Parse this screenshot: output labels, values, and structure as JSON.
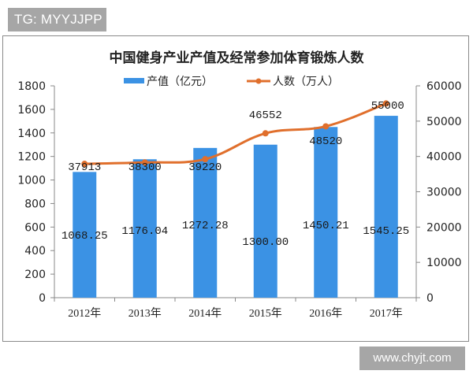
{
  "badges": {
    "tg": "TG: MYYJJPP",
    "site": "www.chyjt.com"
  },
  "colors": {
    "bar": "#3b92e4",
    "line": "#e06f2c",
    "axis": "#888888",
    "text": "#222222"
  },
  "chart_data": {
    "type": "bar+line",
    "title": "中国健身产业产值及经常参加体育锻炼人数",
    "categories": [
      "2012年",
      "2013年",
      "2014年",
      "2015年",
      "2016年",
      "2017年"
    ],
    "series": [
      {
        "name": "产值（亿元）",
        "type": "bar",
        "axis": "left",
        "values": [
          1068.25,
          1176.04,
          1272.28,
          1300.0,
          1450.21,
          1545.25
        ],
        "labels": [
          "1068.25",
          "1176.04",
          "1272.28",
          "1300.00",
          "1450.21",
          "1545.25"
        ]
      },
      {
        "name": "人数（万人）",
        "type": "line",
        "axis": "right",
        "values": [
          37913,
          38300,
          39220,
          46552,
          48520,
          55000
        ],
        "labels": [
          "37913",
          "38300",
          "39220",
          "46552",
          "48520",
          "55000"
        ]
      }
    ],
    "left_axis": {
      "ylim": [
        0,
        1800
      ],
      "ticks": [
        "0",
        "200",
        "400",
        "600",
        "800",
        "1000",
        "1200",
        "1400",
        "1600",
        "1800"
      ]
    },
    "right_axis": {
      "ylim": [
        0,
        60000
      ],
      "ticks": [
        "0",
        "10000",
        "20000",
        "30000",
        "40000",
        "50000",
        "60000"
      ]
    },
    "xlabel": "",
    "ylabel": "",
    "legend_position": "top",
    "grid": false
  }
}
